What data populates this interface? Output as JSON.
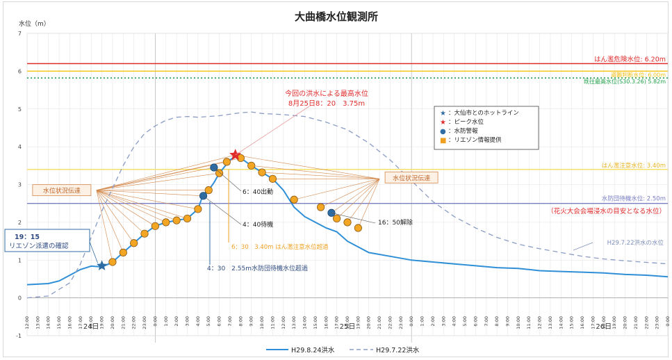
{
  "chart_data": {
    "type": "line",
    "title": "大曲橋水位観測所",
    "ylabel": "水位（m）",
    "ylim": [
      -1,
      7
    ],
    "yticks": [
      "-1",
      "0",
      "1",
      "2",
      "3",
      "4",
      "5",
      "6",
      "7"
    ],
    "grid": true,
    "xticks": [
      "12:00",
      "13:00",
      "14:00",
      "15:00",
      "16:00",
      "17:00",
      "18:00",
      "19:00",
      "20:00",
      "21:00",
      "22:00",
      "23:00",
      "0:00",
      "1:00",
      "2:00",
      "3:00",
      "4:00",
      "5:00",
      "6:00",
      "7:00",
      "8:00",
      "9:00",
      "10:00",
      "11:00",
      "12:00",
      "13:00",
      "14:00",
      "15:00",
      "16:00",
      "17:00",
      "18:00",
      "19:00",
      "20:00",
      "21:00",
      "22:00",
      "23:00",
      "0:00",
      "1:00",
      "2:00",
      "3:00",
      "4:00",
      "5:00",
      "6:00",
      "7:00",
      "8:00",
      "9:00",
      "10:00",
      "11:00",
      "12:00",
      "13:00",
      "14:00",
      "15:00",
      "16:00",
      "17:00",
      "18:00",
      "19:00",
      "20:00",
      "21:00",
      "22:00",
      "23:00",
      "0:00"
    ],
    "day_labels": [
      {
        "label": "24日",
        "hour": 6
      },
      {
        "label": "25日",
        "hour": 30
      },
      {
        "label": "26日",
        "hour": 54
      }
    ],
    "reference_lines": [
      {
        "label": "はん濫危険水位: 6.20m",
        "value": 6.2,
        "color": "#e02b2b",
        "style": "solid"
      },
      {
        "label": "避難判断水位: 6.00m",
        "value": 6.0,
        "color": "#f4c21b",
        "style": "solid"
      },
      {
        "label": "既往最高水位(S30.3.26) 5.82m",
        "value": 5.82,
        "color": "#22a04a",
        "style": "dotted"
      },
      {
        "label": "はん濫注意水位: 3.40m",
        "value": 3.4,
        "color": "#f7e06a",
        "style": "solid"
      },
      {
        "label": "水防団待機水位: 2.50m",
        "value": 2.5,
        "color": "#7a7fc4",
        "style": "solid"
      }
    ],
    "series": [
      {
        "name": "H29.8.24洪水",
        "color": "#2f8fd6",
        "dash": "solid",
        "hours": [
          0,
          2,
          3,
          4,
          5,
          6,
          7,
          7.5,
          8,
          9,
          10,
          11,
          12,
          13,
          14,
          15,
          16,
          16.5,
          17,
          17.5,
          18,
          19,
          19.5,
          20,
          21,
          22,
          23,
          24,
          25,
          26,
          27,
          28,
          29,
          30,
          32,
          34,
          36,
          38,
          40,
          42,
          44,
          46,
          48,
          50,
          52,
          54,
          56,
          58,
          60
        ],
        "values": [
          0.35,
          0.38,
          0.45,
          0.6,
          0.75,
          0.84,
          0.82,
          0.88,
          0.95,
          1.2,
          1.45,
          1.7,
          1.9,
          2.0,
          2.05,
          2.1,
          2.35,
          2.75,
          2.85,
          3.05,
          3.3,
          3.65,
          3.75,
          3.7,
          3.5,
          3.32,
          3.15,
          2.85,
          2.4,
          2.15,
          2.0,
          1.85,
          1.75,
          1.5,
          1.2,
          1.1,
          1.0,
          0.95,
          0.9,
          0.85,
          0.8,
          0.78,
          0.72,
          0.7,
          0.68,
          0.66,
          0.62,
          0.6,
          0.56
        ]
      },
      {
        "name": "H29.7.22洪水",
        "color": "#8a9bc4",
        "dash": "dashed",
        "hours": [
          0,
          2,
          4,
          5,
          6,
          7,
          8,
          9,
          10,
          11,
          12,
          13,
          14,
          15,
          16,
          18,
          20,
          21,
          22,
          24,
          26,
          28,
          30,
          32,
          34,
          36,
          38,
          40,
          42,
          44,
          46,
          48,
          50,
          52,
          54,
          56,
          58,
          60
        ],
        "values": [
          0.0,
          0.05,
          0.4,
          0.9,
          1.6,
          2.3,
          2.9,
          3.5,
          4.0,
          4.35,
          4.55,
          4.7,
          4.78,
          4.8,
          4.78,
          4.82,
          4.9,
          4.92,
          4.88,
          4.85,
          4.8,
          4.65,
          4.45,
          4.1,
          3.65,
          3.1,
          2.55,
          2.15,
          1.85,
          1.6,
          1.42,
          1.3,
          1.2,
          1.1,
          1.03,
          0.98,
          0.94,
          0.9
        ]
      }
    ],
    "markers": {
      "hotline_star": {
        "hour": 7,
        "value": 0.85
      },
      "peak_star": {
        "hour": 19.5,
        "value": 3.78
      },
      "warning_points": [
        {
          "hour": 16.5,
          "value": 2.7
        },
        {
          "hour": 17.5,
          "value": 3.45
        },
        {
          "hour": 28.5,
          "value": 2.25
        }
      ],
      "info_points": [
        {
          "hour": 8,
          "value": 0.95
        },
        {
          "hour": 9,
          "value": 1.2
        },
        {
          "hour": 10,
          "value": 1.45
        },
        {
          "hour": 11,
          "value": 1.7
        },
        {
          "hour": 12,
          "value": 1.9
        },
        {
          "hour": 13,
          "value": 2.0
        },
        {
          "hour": 14,
          "value": 2.05
        },
        {
          "hour": 15,
          "value": 2.1
        },
        {
          "hour": 16,
          "value": 2.35
        },
        {
          "hour": 17,
          "value": 2.85
        },
        {
          "hour": 18,
          "value": 3.3
        },
        {
          "hour": 18.7,
          "value": 3.6
        },
        {
          "hour": 20,
          "value": 3.7
        },
        {
          "hour": 21,
          "value": 3.5
        },
        {
          "hour": 22,
          "value": 3.32
        },
        {
          "hour": 23,
          "value": 3.15
        },
        {
          "hour": 25,
          "value": 2.6
        },
        {
          "hour": 27.5,
          "value": 2.4
        },
        {
          "hour": 29,
          "value": 2.1
        },
        {
          "hour": 30,
          "value": 2.0
        },
        {
          "hour": 31,
          "value": 1.85
        }
      ],
      "fan_left": {
        "hour": 6.5,
        "value": 2.85
      },
      "fan_right": {
        "hour": 33,
        "value": 3.15
      }
    },
    "annotations": {
      "peak_line1": "今回の洪水による最高水位",
      "peak_line2": "8月25日8：20　3.75m",
      "label_640": "6：40出動",
      "label_440": "4：40待機",
      "label_630": "6：30　3.40m はん濫注意水位超過",
      "label_430": "4：30　2.55m水防団待機水位超過",
      "label_1650": "16：50解除",
      "liaison_time": "19：15",
      "liaison_text": "リエゾン派遣の確認",
      "fireworks_note": "（花火大会会場浸水の目安となる水位）",
      "prev_flood_label": "H29.7.22洪水の水位",
      "status_left": "水位状況伝達",
      "status_right": "水位状況伝達"
    },
    "legend_box": [
      {
        "symbol": "★",
        "color": "#2e6da4",
        "label": "：大仙市とのホットライン"
      },
      {
        "symbol": "★",
        "color": "#e02b2b",
        "label": "：ピーク水位"
      },
      {
        "symbol": "●",
        "color": "#2e6da4",
        "label": "：水防警報"
      },
      {
        "symbol": "■",
        "color": "#f0a020",
        "label": "：リエゾン情報提供"
      }
    ],
    "legend": [
      {
        "label": "H29.8.24洪水",
        "style": "solid",
        "color": "#2f8fd6"
      },
      {
        "label": "H29.7.22洪水",
        "style": "dashed",
        "color": "#8a9bc4"
      }
    ]
  }
}
